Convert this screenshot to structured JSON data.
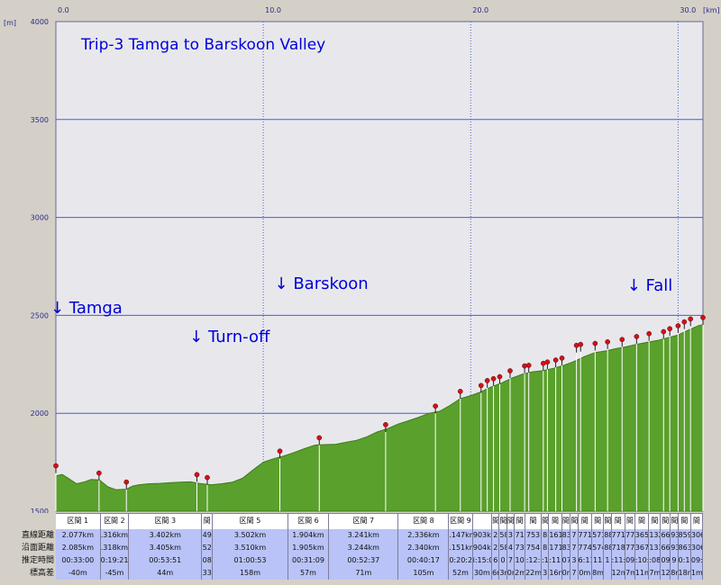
{
  "chart_data": {
    "type": "area",
    "title": "Trip-3 Tamga to Barskoon Valley",
    "x_unit": "[km]",
    "y_unit": "[m]",
    "xlim": [
      0,
      31.2
    ],
    "ylim": [
      1500,
      4000
    ],
    "x_ticks": [
      "0.0",
      "10.0",
      "20.0",
      "30.0"
    ],
    "y_ticks": [
      "4000",
      "3500",
      "3000",
      "2500",
      "2000",
      "1500"
    ],
    "annotations": [
      {
        "text": "↓ Tamga",
        "x": 0.0,
        "y": 2510
      },
      {
        "text": "↓ Turn-off",
        "x": 6.7,
        "y": 2365
      },
      {
        "text": "↓ Barskoon",
        "x": 10.8,
        "y": 2635
      },
      {
        "text": "↓ Fall",
        "x": 27.8,
        "y": 2625
      }
    ],
    "profile": {
      "x": [
        0,
        0.3,
        0.6,
        1.0,
        1.4,
        1.7,
        2.1,
        2.5,
        2.9,
        3.4,
        3.7,
        4.0,
        4.5,
        5.0,
        5.5,
        6.0,
        6.5,
        6.9,
        7.5,
        8.0,
        8.5,
        9.0,
        9.5,
        10.0,
        10.5,
        11.0,
        11.5,
        12.0,
        12.5,
        13.0,
        13.5,
        14.0,
        14.5,
        15.0,
        15.5,
        16.0,
        16.5,
        17.0,
        17.5,
        18.0,
        18.5,
        19.0,
        19.5,
        20.0,
        20.5,
        21.0,
        21.5,
        22.0,
        22.5,
        23.0,
        23.5,
        24.0,
        24.5,
        25.0,
        25.5,
        26.0,
        26.5,
        27.0,
        27.5,
        28.0,
        28.5,
        29.0,
        29.5,
        30.0,
        30.5,
        31.0,
        31.2
      ],
      "y": [
        1680,
        1688,
        1668,
        1640,
        1650,
        1662,
        1660,
        1625,
        1610,
        1612,
        1628,
        1635,
        1640,
        1642,
        1645,
        1648,
        1650,
        1642,
        1635,
        1640,
        1648,
        1668,
        1710,
        1750,
        1768,
        1782,
        1800,
        1820,
        1838,
        1840,
        1842,
        1852,
        1862,
        1880,
        1905,
        1922,
        1945,
        1962,
        1980,
        2000,
        2010,
        2040,
        2075,
        2090,
        2110,
        2135,
        2155,
        2180,
        2200,
        2212,
        2218,
        2230,
        2245,
        2265,
        2290,
        2310,
        2318,
        2330,
        2340,
        2352,
        2362,
        2372,
        2385,
        2400,
        2425,
        2448,
        2452
      ]
    },
    "waypoints": [
      {
        "x": 0.0,
        "y": 1695
      },
      {
        "x": 2.08,
        "y": 1658
      },
      {
        "x": 3.4,
        "y": 1612
      },
      {
        "x": 6.8,
        "y": 1650
      },
      {
        "x": 7.3,
        "y": 1635
      },
      {
        "x": 10.8,
        "y": 1770
      },
      {
        "x": 12.7,
        "y": 1838
      },
      {
        "x": 15.9,
        "y": 1905
      },
      {
        "x": 18.3,
        "y": 2000
      },
      {
        "x": 19.5,
        "y": 2075
      },
      {
        "x": 20.5,
        "y": 2105
      },
      {
        "x": 20.8,
        "y": 2130
      },
      {
        "x": 21.1,
        "y": 2140
      },
      {
        "x": 21.4,
        "y": 2150
      },
      {
        "x": 21.9,
        "y": 2180
      },
      {
        "x": 22.6,
        "y": 2205
      },
      {
        "x": 22.8,
        "y": 2208
      },
      {
        "x": 23.5,
        "y": 2218
      },
      {
        "x": 23.7,
        "y": 2225
      },
      {
        "x": 24.1,
        "y": 2235
      },
      {
        "x": 24.4,
        "y": 2245
      },
      {
        "x": 25.1,
        "y": 2310
      },
      {
        "x": 25.3,
        "y": 2315
      },
      {
        "x": 26.0,
        "y": 2320
      },
      {
        "x": 26.6,
        "y": 2328
      },
      {
        "x": 27.3,
        "y": 2340
      },
      {
        "x": 28.0,
        "y": 2355
      },
      {
        "x": 28.6,
        "y": 2370
      },
      {
        "x": 29.3,
        "y": 2380
      },
      {
        "x": 29.6,
        "y": 2395
      },
      {
        "x": 30.0,
        "y": 2410
      },
      {
        "x": 30.3,
        "y": 2430
      },
      {
        "x": 30.6,
        "y": 2445
      },
      {
        "x": 31.2,
        "y": 2452
      }
    ],
    "colors": {
      "fill": "#5aa02c",
      "fill_dark": "#3f7a1c",
      "plot_bg": "#e8e8ec",
      "grid": "#4b5bd6",
      "marker": "#d0121b"
    }
  },
  "table": {
    "row_labels": [
      "直線距離",
      "沿面距離",
      "推定時間",
      "標高差"
    ],
    "segments": [
      {
        "label": "区間 1",
        "straight": "2.077km",
        "surface": "2.085km",
        "time": "00:33:00",
        "elev": "-40m",
        "w": 2.08
      },
      {
        "label": "区間 2",
        "straight": ".316km",
        "surface": ".318km",
        "time": "0:19:21",
        "elev": "-45m",
        "w": 1.32
      },
      {
        "label": "区間 3",
        "straight": "3.402km",
        "surface": "3.405km",
        "time": "00:53:51",
        "elev": "44m",
        "w": 3.4
      },
      {
        "label": "間",
        "straight": "49",
        "surface": "52",
        "time": "08",
        "elev": "33",
        "w": 0.5
      },
      {
        "label": "区間 5",
        "straight": "3.502km",
        "surface": "3.510km",
        "time": "01:00:53",
        "elev": "158m",
        "w": 3.5
      },
      {
        "label": "区間 6",
        "straight": "1.904km",
        "surface": "1.905km",
        "time": "00:31:09",
        "elev": "57m",
        "w": 1.9
      },
      {
        "label": "区間 7",
        "straight": "3.241km",
        "surface": "3.244km",
        "time": "00:52:37",
        "elev": "71m",
        "w": 3.24
      },
      {
        "label": "区間 8",
        "straight": "2.336km",
        "surface": "2.340km",
        "time": "00:40:17",
        "elev": "105m",
        "w": 2.34
      },
      {
        "label": "区間 9",
        "straight": ".147km",
        "surface": ".151km",
        "time": "0:20:2",
        "elev": "52m",
        "w": 1.1
      },
      {
        "label": "",
        "straight": "903k",
        "surface": "904k",
        "time": "i:15:0",
        "elev": "30m",
        "w": 0.9
      },
      {
        "label": "間",
        "straight": "2",
        "surface": "2",
        "time": "6",
        "elev": "6m",
        "w": 0.35
      },
      {
        "label": "間",
        "straight": "58",
        "surface": "58",
        "time": "0",
        "elev": "3m",
        "w": 0.35
      },
      {
        "label": "間",
        "straight": "3",
        "surface": "4",
        "time": "7",
        "elev": "0m",
        "w": 0.35
      },
      {
        "label": "間",
        "straight": "71",
        "surface": "73",
        "time": "10",
        "elev": "2m",
        "w": 0.5
      },
      {
        "label": "間",
        "straight": "753",
        "surface": "754",
        "time": ":12:",
        "elev": "22m",
        "w": 0.75
      },
      {
        "label": "間",
        "straight": "8",
        "surface": "8",
        "time": ":1",
        "elev": "3",
        "w": 0.35
      },
      {
        "label": "間",
        "straight": "161",
        "surface": "171",
        "time": ":11:",
        "elev": "16m",
        "w": 0.6
      },
      {
        "label": "間",
        "straight": "83",
        "surface": "83",
        "time": "07",
        "elev": "0m",
        "w": 0.4
      },
      {
        "label": "間",
        "straight": "7",
        "surface": "7",
        "time": "3",
        "elev": "7",
        "w": 0.35
      },
      {
        "label": "間",
        "straight": "771",
        "surface": "774",
        "time": "6:11:",
        "elev": "0m",
        "w": 0.65
      },
      {
        "label": "間",
        "straight": "573",
        "surface": "574",
        "time": "11",
        "elev": "8m",
        "w": 0.55
      },
      {
        "label": "間",
        "straight": "88",
        "surface": "88",
        "time": "1",
        "elev": "",
        "w": 0.35
      },
      {
        "label": "間",
        "straight": "771",
        "surface": "718",
        "time": ":11:",
        "elev": "12m",
        "w": 0.65
      },
      {
        "label": "間",
        "straight": "77",
        "surface": "77",
        "time": "09",
        "elev": "7m",
        "w": 0.45
      },
      {
        "label": "間",
        "straight": "365",
        "surface": "367",
        "time": ":10:",
        "elev": "11m",
        "w": 0.65
      },
      {
        "label": "間",
        "straight": "132",
        "surface": "133",
        "time": ":08",
        "elev": "7m",
        "w": 0.55
      },
      {
        "label": "間",
        "straight": "66",
        "surface": "66",
        "time": "09",
        "elev": "12",
        "w": 0.45
      },
      {
        "label": "間",
        "straight": "93",
        "surface": "93",
        "time": "9",
        "elev": "8m",
        "w": 0.35
      },
      {
        "label": "間",
        "straight": "859",
        "surface": "863",
        "time": "0:10",
        "elev": "18m",
        "w": 0.6
      },
      {
        "label": "間",
        "straight": "306",
        "surface": "306",
        "time": "09:",
        "elev": "1m",
        "w": 0.55
      }
    ]
  }
}
